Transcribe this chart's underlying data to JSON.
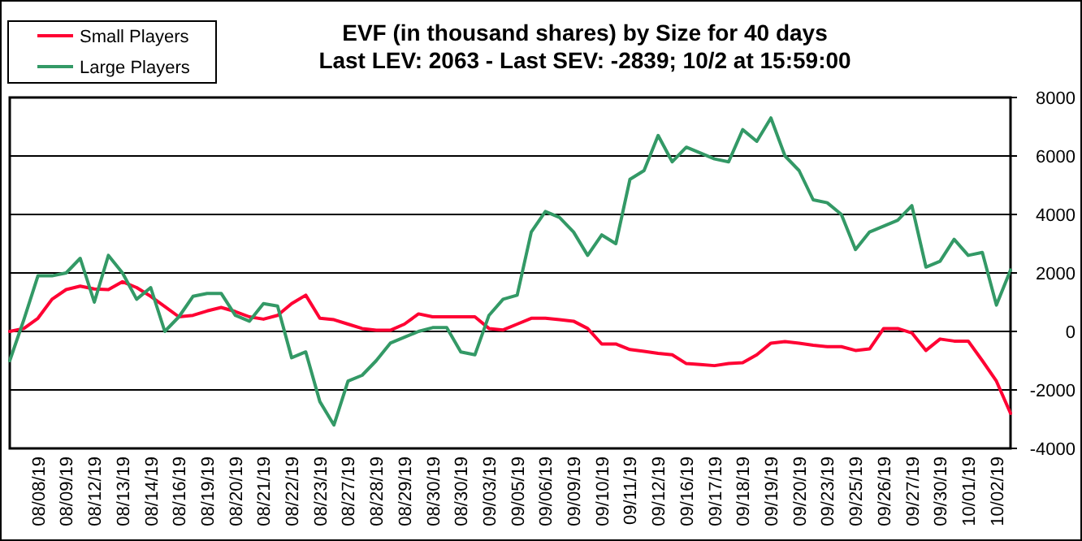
{
  "chart_data": {
    "type": "line",
    "title": "EVF (in thousand shares) by Size for 40 days",
    "subtitle": "Last LEV: 2063 - Last SEV: -2839; 10/2 at 15:59:00",
    "categories": [
      null,
      null,
      "08/08/19",
      null,
      "08/09/19",
      null,
      "08/12/19",
      null,
      "08/13/19",
      null,
      "08/14/19",
      null,
      "08/16/19",
      null,
      "08/19/19",
      null,
      "08/20/19",
      null,
      "08/21/19",
      null,
      "08/22/19",
      null,
      "08/23/19",
      null,
      "08/27/19",
      null,
      "08/28/19",
      null,
      "08/29/19",
      null,
      "08/30/19",
      null,
      "08/30/19",
      null,
      "09/03/19",
      null,
      "09/05/19",
      null,
      "09/06/19",
      null,
      "09/09/19",
      null,
      "09/10/19",
      null,
      "09/11/19",
      null,
      "09/12/19",
      null,
      "09/16/19",
      null,
      "09/17/19",
      null,
      "09/18/19",
      null,
      "09/19/19",
      null,
      "09/20/19",
      null,
      "09/23/19",
      null,
      "09/25/19",
      null,
      "09/26/19",
      null,
      "09/27/19",
      null,
      "09/30/19",
      null,
      "10/01/19",
      null,
      "10/02/19",
      null
    ],
    "ylim": [
      -4000,
      8000
    ],
    "yticks": [
      -4000,
      -2000,
      0,
      2000,
      4000,
      6000,
      8000
    ],
    "grid": "y",
    "legend": "top left",
    "series": [
      {
        "name": "Small Players",
        "color": "#ff0033",
        "values": [
          0,
          100,
          450,
          1100,
          1430,
          1550,
          1450,
          1430,
          1700,
          1500,
          1200,
          850,
          500,
          550,
          700,
          820,
          680,
          500,
          420,
          550,
          950,
          1240,
          450,
          400,
          250,
          100,
          40,
          40,
          250,
          600,
          500,
          500,
          500,
          500,
          100,
          50,
          250,
          450,
          450,
          400,
          350,
          100,
          -430,
          -430,
          -620,
          -680,
          -750,
          -800,
          -1100,
          -1130,
          -1170,
          -1100,
          -1070,
          -800,
          -400,
          -350,
          -400,
          -470,
          -520,
          -520,
          -650,
          -600,
          100,
          100,
          -50,
          -650,
          -260,
          -330,
          -330,
          -1000,
          -1700,
          -2800
        ]
      },
      {
        "name": "Large Players",
        "color": "#339966",
        "values": [
          -1000,
          400,
          1900,
          1900,
          2000,
          2500,
          1000,
          2600,
          2000,
          1100,
          1500,
          0,
          500,
          1200,
          1300,
          1300,
          550,
          350,
          950,
          870,
          -900,
          -700,
          -2400,
          -3200,
          -1700,
          -1500,
          -1000,
          -400,
          -200,
          0,
          130,
          130,
          -700,
          -800,
          550,
          1100,
          1240,
          3400,
          4100,
          3900,
          3400,
          2600,
          3300,
          3000,
          5200,
          5500,
          6700,
          5800,
          6300,
          6100,
          5900,
          5800,
          6900,
          6500,
          7300,
          6000,
          5500,
          4500,
          4400,
          4000,
          2800,
          3400,
          3600,
          3800,
          4300,
          2200,
          2400,
          3150,
          2600,
          2700,
          900,
          2100
        ]
      }
    ]
  }
}
